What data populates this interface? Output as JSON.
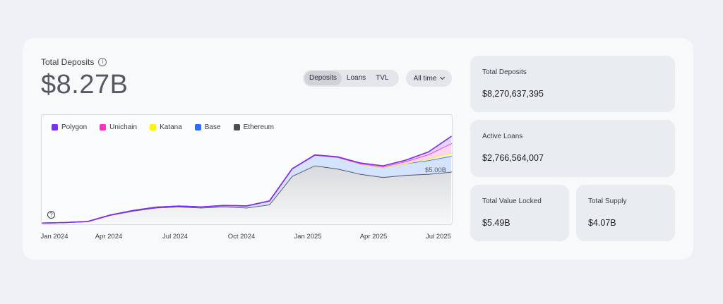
{
  "header": {
    "title": "Total Deposits",
    "value": "$8.27B"
  },
  "tabs": [
    {
      "label": "Deposits",
      "active": true
    },
    {
      "label": "Loans",
      "active": false
    },
    {
      "label": "TVL",
      "active": false
    }
  ],
  "range_select": {
    "label": "All time"
  },
  "stats": {
    "total_deposits": {
      "label": "Total Deposits",
      "value": "$8,270,637,395"
    },
    "active_loans": {
      "label": "Active Loans",
      "value": "$2,766,564,007"
    },
    "tvl": {
      "label": "Total Value Locked",
      "value": "$5.49B"
    },
    "supply": {
      "label": "Total Supply",
      "value": "$4.07B"
    }
  },
  "colors": {
    "polygon": "#7b2ff7",
    "unichain": "#ff2fc0",
    "katana": "#f5f51a",
    "base": "#2f6bff",
    "ethereum": "#4b4e55"
  },
  "chart_data": {
    "type": "area",
    "x": [
      "2024-01-01",
      "2024-02-01",
      "2024-03-01",
      "2024-04-01",
      "2024-05-01",
      "2024-06-01",
      "2024-07-01",
      "2024-08-01",
      "2024-09-01",
      "2024-10-01",
      "2024-11-01",
      "2024-12-01",
      "2025-01-01",
      "2025-02-01",
      "2025-03-01",
      "2025-04-01",
      "2025-05-01",
      "2025-06-01",
      "2025-07-01"
    ],
    "x_ticks": [
      "Jan 2024",
      "Apr 2024",
      "Jul 2024",
      "Oct 2024",
      "Jan 2025",
      "Apr 2025",
      "Jul 2025"
    ],
    "annotation": "$5.00B",
    "ylim": [
      0,
      8.5
    ],
    "series": [
      {
        "name": "Ethereum",
        "values": [
          0.05,
          0.1,
          0.2,
          0.8,
          1.2,
          1.5,
          1.6,
          1.5,
          1.6,
          1.5,
          1.8,
          4.5,
          5.5,
          5.2,
          4.7,
          4.4,
          4.6,
          4.7,
          4.9
        ]
      },
      {
        "name": "Base",
        "values": [
          0,
          0,
          0,
          0.02,
          0.04,
          0.05,
          0.06,
          0.08,
          0.12,
          0.18,
          0.35,
          0.7,
          1.0,
          1.1,
          0.95,
          0.9,
          1.1,
          1.3,
          1.5
        ]
      },
      {
        "name": "Katana",
        "values": [
          0,
          0,
          0,
          0,
          0,
          0,
          0,
          0,
          0,
          0,
          0,
          0,
          0,
          0,
          0,
          0,
          0,
          0.15,
          0.3
        ]
      },
      {
        "name": "Unichain",
        "values": [
          0,
          0,
          0,
          0,
          0,
          0,
          0,
          0,
          0,
          0,
          0,
          0,
          0,
          0,
          0.05,
          0.1,
          0.2,
          0.4,
          0.9
        ]
      },
      {
        "name": "Polygon",
        "values": [
          0,
          0,
          0,
          0,
          0,
          0,
          0,
          0,
          0,
          0,
          0,
          0,
          0.02,
          0.04,
          0.05,
          0.08,
          0.12,
          0.25,
          0.67
        ]
      }
    ],
    "legend": [
      "Polygon",
      "Unichain",
      "Katana",
      "Base",
      "Ethereum"
    ]
  }
}
